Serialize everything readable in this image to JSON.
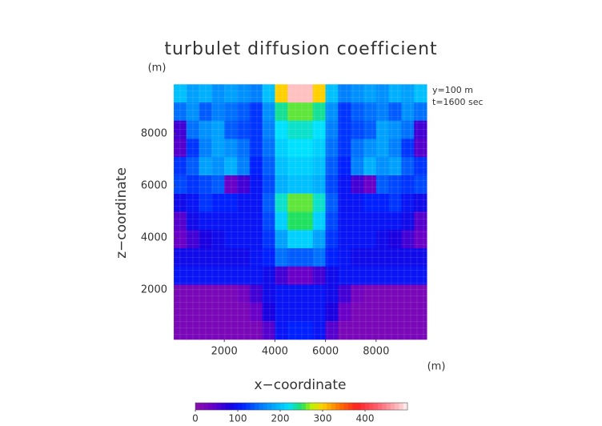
{
  "chart_data": {
    "type": "heatmap",
    "title": "turbulet diffusion coefficient",
    "xlabel": "x−coordinate",
    "ylabel": "z−coordinate",
    "xunit": "(m)",
    "yunit": "(m)",
    "annotations": [
      "y=100 m",
      "t=1600 sec"
    ],
    "xlim": [
      0,
      10000
    ],
    "ylim": [
      0,
      10000
    ],
    "xticks": [
      2000,
      4000,
      6000,
      8000
    ],
    "yticks": [
      2000,
      4000,
      6000,
      8000
    ],
    "x": [
      250,
      750,
      1250,
      1750,
      2250,
      2750,
      3250,
      3750,
      4250,
      4750,
      5250,
      5750,
      6250,
      6750,
      7250,
      7750,
      8250,
      8750,
      9250,
      9750
    ],
    "y": [
      9550,
      8850,
      8150,
      7450,
      6750,
      6050,
      5350,
      4650,
      3950,
      3250,
      2550,
      1850,
      1150,
      450
    ],
    "z": [
      [
        200,
        180,
        190,
        170,
        180,
        170,
        160,
        200,
        300,
        480,
        480,
        300,
        200,
        160,
        170,
        180,
        170,
        190,
        180,
        200
      ],
      [
        150,
        170,
        140,
        160,
        150,
        140,
        120,
        170,
        240,
        260,
        260,
        240,
        170,
        120,
        140,
        150,
        160,
        140,
        170,
        150
      ],
      [
        60,
        150,
        170,
        180,
        140,
        130,
        120,
        160,
        220,
        230,
        230,
        220,
        160,
        120,
        130,
        140,
        180,
        170,
        150,
        60
      ],
      [
        50,
        120,
        160,
        180,
        170,
        150,
        120,
        150,
        210,
        220,
        220,
        210,
        150,
        120,
        150,
        170,
        180,
        160,
        120,
        50
      ],
      [
        120,
        140,
        180,
        170,
        190,
        160,
        110,
        140,
        200,
        210,
        210,
        200,
        140,
        110,
        160,
        190,
        170,
        180,
        140,
        120
      ],
      [
        130,
        120,
        130,
        140,
        40,
        60,
        100,
        130,
        190,
        200,
        200,
        190,
        130,
        100,
        60,
        40,
        140,
        130,
        120,
        130
      ],
      [
        90,
        100,
        120,
        110,
        110,
        100,
        100,
        140,
        230,
        260,
        260,
        230,
        140,
        100,
        100,
        110,
        110,
        120,
        100,
        90
      ],
      [
        50,
        90,
        100,
        100,
        100,
        100,
        100,
        130,
        210,
        250,
        250,
        210,
        130,
        100,
        100,
        100,
        100,
        100,
        90,
        50
      ],
      [
        40,
        60,
        80,
        90,
        100,
        100,
        100,
        120,
        180,
        210,
        210,
        180,
        120,
        100,
        100,
        100,
        90,
        80,
        60,
        40
      ],
      [
        90,
        90,
        90,
        90,
        90,
        90,
        100,
        110,
        150,
        140,
        140,
        150,
        110,
        100,
        90,
        90,
        90,
        90,
        90,
        90
      ],
      [
        100,
        100,
        100,
        100,
        100,
        100,
        100,
        90,
        60,
        40,
        40,
        60,
        90,
        100,
        100,
        100,
        100,
        100,
        100,
        100
      ],
      [
        20,
        20,
        20,
        20,
        20,
        30,
        60,
        90,
        100,
        100,
        100,
        100,
        90,
        60,
        30,
        20,
        20,
        20,
        20,
        20
      ],
      [
        20,
        20,
        20,
        20,
        20,
        20,
        40,
        80,
        100,
        100,
        100,
        100,
        80,
        40,
        20,
        20,
        20,
        20,
        20,
        20
      ],
      [
        20,
        20,
        20,
        20,
        20,
        20,
        20,
        50,
        100,
        110,
        110,
        100,
        50,
        20,
        20,
        20,
        20,
        20,
        20,
        20
      ]
    ],
    "colorbar": {
      "lim": [
        0,
        500
      ],
      "ticks": [
        0,
        100,
        200,
        300,
        400
      ]
    },
    "colormap": [
      [
        0,
        "#8a10a8"
      ],
      [
        40,
        "#6a00c8"
      ],
      [
        80,
        "#1a00e0"
      ],
      [
        110,
        "#0020ff"
      ],
      [
        150,
        "#0070ff"
      ],
      [
        190,
        "#00b0ff"
      ],
      [
        220,
        "#00e0ff"
      ],
      [
        250,
        "#20e060"
      ],
      [
        275,
        "#c0f000"
      ],
      [
        300,
        "#ffd000"
      ],
      [
        340,
        "#ff7000"
      ],
      [
        380,
        "#ff2020"
      ],
      [
        430,
        "#ff6070"
      ],
      [
        480,
        "#ffc0c0"
      ],
      [
        500,
        "#fff4f4"
      ]
    ]
  }
}
